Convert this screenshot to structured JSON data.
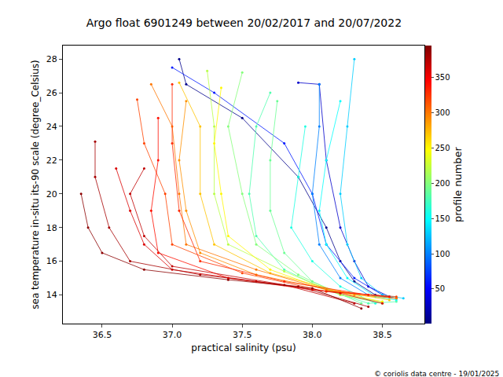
{
  "chart_data": {
    "type": "scatter",
    "title": "Argo float 6901249 between 20/02/2017 and 20/07/2022",
    "x_label": "practical salinity (psu)",
    "y_label": "sea temperature in-situ its-90 scale (degree_Celsius)",
    "annotation": "© coriolis data centre - 19/01/2025",
    "xlim": [
      36.22,
      38.8
    ],
    "xticks": [
      36.5,
      {
        "value": 37,
        "label": "37.0"
      },
      37.5,
      {
        "value": 38,
        "label": "38.0"
      },
      38.5
    ],
    "ylim": [
      12.3,
      28.8
    ],
    "yticks": [
      14,
      16,
      18,
      20,
      22,
      24,
      26,
      28
    ],
    "grid": false,
    "marker": "circle",
    "line_style": "solid",
    "colorbar": {
      "title": "profile number",
      "range": [
        1,
        395
      ],
      "ticks": [
        50,
        100,
        150,
        200,
        250,
        300,
        350
      ]
    },
    "series": [
      {
        "profile": 5,
        "x": [
          37.05,
          37.1,
          37.5,
          37.9,
          38.1,
          38.2,
          38.3,
          38.45,
          38.6
        ],
        "y": [
          28.0,
          26.5,
          24.5,
          21.0,
          18.0,
          16.0,
          14.8,
          14.0,
          13.8
        ]
      },
      {
        "profile": 30,
        "x": [
          37.9,
          38.05,
          38.1,
          38.2,
          38.3,
          38.4,
          38.55
        ],
        "y": [
          26.6,
          26.5,
          22.0,
          18.0,
          16.0,
          14.5,
          13.9
        ]
      },
      {
        "profile": 60,
        "x": [
          37.0,
          37.3,
          37.8,
          38.0,
          38.1,
          38.3,
          38.5
        ],
        "y": [
          27.5,
          26.0,
          23.0,
          20.0,
          17.0,
          15.0,
          14.0
        ]
      },
      {
        "profile": 100,
        "x": [
          38.05,
          38.05,
          38.0,
          38.05,
          38.2,
          38.4,
          38.6
        ],
        "y": [
          26.5,
          24.0,
          20.0,
          17.0,
          15.0,
          14.0,
          13.8
        ]
      },
      {
        "profile": 130,
        "x": [
          38.3,
          38.25,
          38.2,
          38.25,
          38.35,
          38.5,
          38.65
        ],
        "y": [
          28.0,
          24.0,
          20.0,
          17.0,
          15.0,
          14.0,
          13.8
        ]
      },
      {
        "profile": 150,
        "x": [
          38.2,
          38.1,
          38.05,
          38.1,
          38.25,
          38.45,
          38.6
        ],
        "y": [
          25.5,
          22.0,
          19.0,
          17.0,
          15.0,
          13.9,
          13.7
        ]
      },
      {
        "profile": 160,
        "x": [
          37.95,
          37.9,
          37.85,
          38.0,
          38.2,
          38.45
        ],
        "y": [
          24.0,
          21.0,
          18.0,
          16.0,
          14.5,
          13.5
        ]
      },
      {
        "profile": 180,
        "x": [
          37.7,
          37.6,
          37.55,
          37.6,
          37.8,
          38.1,
          38.4,
          38.6
        ],
        "y": [
          26.0,
          24.0,
          20.0,
          17.5,
          15.5,
          14.3,
          13.5,
          13.6
        ]
      },
      {
        "profile": 190,
        "x": [
          37.75,
          37.7,
          37.7,
          37.8,
          38.0,
          38.35
        ],
        "y": [
          25.5,
          22.0,
          19.0,
          16.5,
          14.8,
          13.5
        ]
      },
      {
        "profile": 200,
        "x": [
          37.5,
          37.4,
          37.5,
          37.6,
          37.9,
          38.2,
          38.5
        ],
        "y": [
          27.2,
          24.0,
          20.0,
          17.0,
          15.2,
          14.0,
          13.5
        ]
      },
      {
        "profile": 220,
        "x": [
          37.25,
          37.3,
          37.3,
          37.4,
          37.8,
          38.2,
          38.5
        ],
        "y": [
          27.3,
          24.0,
          20.0,
          17.0,
          15.4,
          14.0,
          13.6
        ]
      },
      {
        "profile": 250,
        "x": [
          37.35,
          37.3,
          37.35,
          37.4,
          37.7,
          38.1,
          38.5
        ],
        "y": [
          26.3,
          23.0,
          20.0,
          17.5,
          15.5,
          14.3,
          13.6
        ]
      },
      {
        "profile": 270,
        "x": [
          37.05,
          37.2,
          37.2,
          37.3,
          37.7,
          38.2,
          38.55
        ],
        "y": [
          26.6,
          24.0,
          20.0,
          17.0,
          15.3,
          14.2,
          13.7
        ]
      },
      {
        "profile": 290,
        "x": [
          37.1,
          37.05,
          37.1,
          37.2,
          37.6,
          38.3,
          38.6
        ],
        "y": [
          25.5,
          22.0,
          19.0,
          16.5,
          15.2,
          14.0,
          13.8
        ]
      },
      {
        "profile": 300,
        "x": [
          36.85,
          37.0,
          37.05,
          37.1,
          37.6,
          38.1,
          38.6
        ],
        "y": [
          26.5,
          24.0,
          20.0,
          17.0,
          15.5,
          14.3,
          13.8
        ]
      },
      {
        "profile": 320,
        "x": [
          36.75,
          36.8,
          36.95,
          37.0,
          37.5,
          38.1,
          38.6
        ],
        "y": [
          25.6,
          23.0,
          20.0,
          17.0,
          15.3,
          14.2,
          13.9
        ]
      },
      {
        "profile": 330,
        "x": [
          37.0,
          37.0,
          37.05,
          37.2,
          37.8,
          38.4
        ],
        "y": [
          26.5,
          23.0,
          19.0,
          16.0,
          14.8,
          14.0
        ]
      },
      {
        "profile": 340,
        "x": [
          36.9,
          36.9,
          36.85,
          36.9,
          37.4,
          38.0,
          38.55
        ],
        "y": [
          24.5,
          22.0,
          19.0,
          16.5,
          15.0,
          14.3,
          13.9
        ]
      },
      {
        "profile": 360,
        "x": [
          36.6,
          36.7,
          36.8,
          37.0,
          37.6,
          38.2,
          38.5
        ],
        "y": [
          21.5,
          19.0,
          17.0,
          15.5,
          14.8,
          14.1,
          13.5
        ]
      },
      {
        "profile": 370,
        "x": [
          36.8,
          36.7,
          36.8,
          37.0,
          37.8,
          38.3
        ],
        "y": [
          21.5,
          20.0,
          17.5,
          15.7,
          14.6,
          13.5
        ]
      },
      {
        "profile": 380,
        "x": [
          36.45,
          36.45,
          36.55,
          36.7,
          37.2,
          37.9,
          38.4
        ],
        "y": [
          23.1,
          21.0,
          18.0,
          16.0,
          15.2,
          14.5,
          13.3
        ]
      },
      {
        "profile": 390,
        "x": [
          36.35,
          36.4,
          36.5,
          36.8,
          37.4,
          38.0,
          38.35
        ],
        "y": [
          20.0,
          18.0,
          16.5,
          15.5,
          14.9,
          14.4,
          13.2
        ]
      }
    ]
  }
}
